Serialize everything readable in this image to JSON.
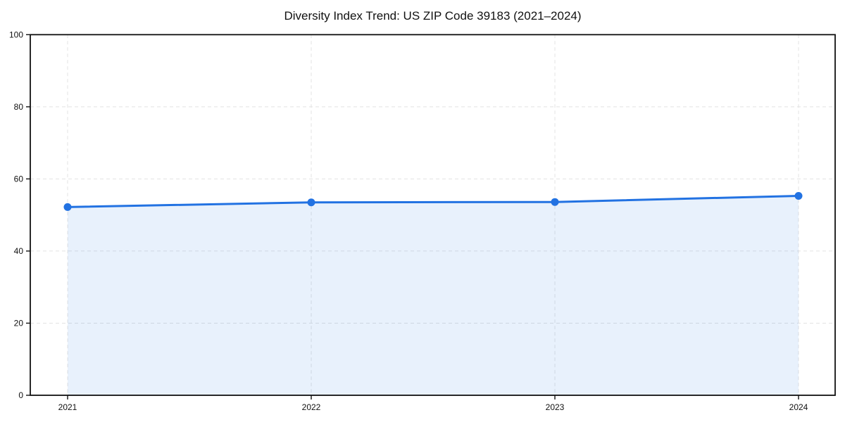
{
  "page": {
    "background": "#ffffff"
  },
  "chart_data": {
    "type": "area",
    "title": "Diversity Index Trend: US ZIP Code 39183 (2021–2024)",
    "x": [
      "2021",
      "2022",
      "2023",
      "2024"
    ],
    "series": [
      {
        "name": "Diversity Index",
        "values": [
          52.2,
          53.5,
          53.6,
          55.3
        ]
      }
    ],
    "xlabel": "",
    "ylabel": "",
    "ylim": [
      0,
      100
    ],
    "yticks": [
      0,
      20,
      40,
      60,
      80,
      100
    ],
    "grid": "dashed horizontal and vertical gridlines",
    "legend": "none",
    "style": {
      "line_color": "#2272e2",
      "marker": "circle",
      "marker_radius": 5.5,
      "line_width": 3,
      "fill_color": "#2272e2",
      "fill_opacity": 0.1,
      "grid_color": "#e3e3e3",
      "axis_color": "#111111",
      "text_color": "#111111"
    }
  }
}
